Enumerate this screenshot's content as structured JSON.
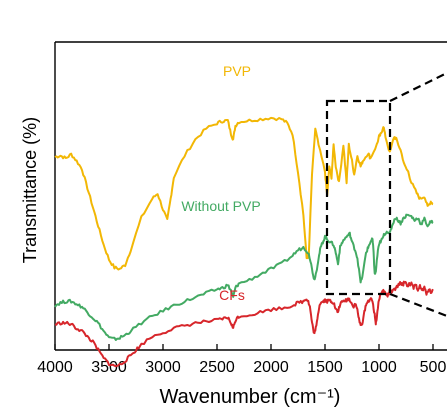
{
  "chart_data": {
    "type": "line",
    "title": "",
    "xlabel": "Wavenumber (cm⁻¹)",
    "ylabel": "Transmittance (%)",
    "xlim": [
      4000,
      500
    ],
    "x_reversed": true,
    "x_ticks": [
      "4000",
      "3500",
      "3000",
      "2500",
      "2000",
      "1500",
      "1000",
      "500"
    ],
    "y_ticks_shown": false,
    "grid": false,
    "legend": "none",
    "series": [
      {
        "name": "PVP",
        "color": "#f2b705",
        "points": [
          [
            4000,
            0.615
          ],
          [
            3950,
            0.62
          ],
          [
            3900,
            0.61
          ],
          [
            3850,
            0.625
          ],
          [
            3800,
            0.6
          ],
          [
            3750,
            0.57
          ],
          [
            3700,
            0.5
          ],
          [
            3650,
            0.43
          ],
          [
            3600,
            0.36
          ],
          [
            3550,
            0.29
          ],
          [
            3500,
            0.235
          ],
          [
            3450,
            0.205
          ],
          [
            3400,
            0.2
          ],
          [
            3350,
            0.215
          ],
          [
            3300,
            0.27
          ],
          [
            3200,
            0.39
          ],
          [
            3100,
            0.46
          ],
          [
            3050,
            0.48
          ],
          [
            3000,
            0.42
          ],
          [
            2960,
            0.38
          ],
          [
            2930,
            0.46
          ],
          [
            2900,
            0.54
          ],
          [
            2800,
            0.62
          ],
          [
            2700,
            0.68
          ],
          [
            2600,
            0.72
          ],
          [
            2500,
            0.74
          ],
          [
            2450,
            0.748
          ],
          [
            2400,
            0.75
          ],
          [
            2370,
            0.7
          ],
          [
            2350,
            0.68
          ],
          [
            2330,
            0.73
          ],
          [
            2300,
            0.745
          ],
          [
            2200,
            0.75
          ],
          [
            2100,
            0.755
          ],
          [
            2000,
            0.76
          ],
          [
            1900,
            0.755
          ],
          [
            1850,
            0.74
          ],
          [
            1800,
            0.7
          ],
          [
            1750,
            0.56
          ],
          [
            1700,
            0.4
          ],
          [
            1670,
            0.24
          ],
          [
            1650,
            0.25
          ],
          [
            1620,
            0.55
          ],
          [
            1590,
            0.72
          ],
          [
            1560,
            0.66
          ],
          [
            1500,
            0.56
          ],
          [
            1480,
            0.47
          ],
          [
            1460,
            0.58
          ],
          [
            1440,
            0.54
          ],
          [
            1420,
            0.66
          ],
          [
            1400,
            0.58
          ],
          [
            1370,
            0.52
          ],
          [
            1330,
            0.66
          ],
          [
            1300,
            0.52
          ],
          [
            1280,
            0.66
          ],
          [
            1250,
            0.6
          ],
          [
            1230,
            0.55
          ],
          [
            1200,
            0.62
          ],
          [
            1170,
            0.58
          ],
          [
            1150,
            0.6
          ],
          [
            1100,
            0.63
          ],
          [
            1080,
            0.61
          ],
          [
            1020,
            0.66
          ],
          [
            1000,
            0.69
          ],
          [
            980,
            0.7
          ],
          [
            960,
            0.73
          ],
          [
            940,
            0.69
          ],
          [
            900,
            0.63
          ],
          [
            860,
            0.69
          ],
          [
            840,
            0.68
          ],
          [
            800,
            0.64
          ],
          [
            760,
            0.58
          ],
          [
            730,
            0.56
          ],
          [
            700,
            0.52
          ],
          [
            650,
            0.48
          ],
          [
            620,
            0.46
          ],
          [
            580,
            0.47
          ],
          [
            550,
            0.43
          ],
          [
            520,
            0.45
          ],
          [
            500,
            0.44
          ]
        ]
      },
      {
        "name": "Without PVP",
        "color": "#43aa63",
        "points": [
          [
            4000,
            0.065
          ],
          [
            3950,
            0.075
          ],
          [
            3900,
            0.08
          ],
          [
            3850,
            0.08
          ],
          [
            3800,
            0.07
          ],
          [
            3750,
            0.06
          ],
          [
            3700,
            0.04
          ],
          [
            3650,
            0.02
          ],
          [
            3600,
            0.0
          ],
          [
            3550,
            -0.03
          ],
          [
            3500,
            -0.055
          ],
          [
            3450,
            -0.06
          ],
          [
            3400,
            -0.055
          ],
          [
            3350,
            -0.045
          ],
          [
            3300,
            -0.03
          ],
          [
            3200,
            0.0
          ],
          [
            3100,
            0.025
          ],
          [
            3000,
            0.045
          ],
          [
            2900,
            0.065
          ],
          [
            2800,
            0.08
          ],
          [
            2700,
            0.095
          ],
          [
            2600,
            0.11
          ],
          [
            2500,
            0.125
          ],
          [
            2450,
            0.13
          ],
          [
            2400,
            0.14
          ],
          [
            2370,
            0.12
          ],
          [
            2350,
            0.095
          ],
          [
            2330,
            0.13
          ],
          [
            2300,
            0.145
          ],
          [
            2200,
            0.16
          ],
          [
            2100,
            0.18
          ],
          [
            2000,
            0.2
          ],
          [
            1900,
            0.22
          ],
          [
            1800,
            0.25
          ],
          [
            1750,
            0.27
          ],
          [
            1700,
            0.28
          ],
          [
            1650,
            0.26
          ],
          [
            1620,
            0.2
          ],
          [
            1600,
            0.16
          ],
          [
            1580,
            0.19
          ],
          [
            1560,
            0.24
          ],
          [
            1540,
            0.28
          ],
          [
            1520,
            0.3
          ],
          [
            1500,
            0.32
          ],
          [
            1480,
            0.31
          ],
          [
            1450,
            0.3
          ],
          [
            1420,
            0.29
          ],
          [
            1400,
            0.26
          ],
          [
            1380,
            0.22
          ],
          [
            1360,
            0.28
          ],
          [
            1340,
            0.3
          ],
          [
            1300,
            0.32
          ],
          [
            1270,
            0.33
          ],
          [
            1250,
            0.3
          ],
          [
            1220,
            0.27
          ],
          [
            1200,
            0.24
          ],
          [
            1170,
            0.15
          ],
          [
            1150,
            0.18
          ],
          [
            1120,
            0.26
          ],
          [
            1100,
            0.28
          ],
          [
            1080,
            0.3
          ],
          [
            1060,
            0.31
          ],
          [
            1050,
            0.26
          ],
          [
            1040,
            0.18
          ],
          [
            1030,
            0.19
          ],
          [
            1010,
            0.27
          ],
          [
            990,
            0.3
          ],
          [
            970,
            0.31
          ],
          [
            950,
            0.33
          ],
          [
            920,
            0.34
          ],
          [
            900,
            0.33
          ],
          [
            880,
            0.36
          ],
          [
            850,
            0.39
          ],
          [
            820,
            0.38
          ],
          [
            800,
            0.37
          ],
          [
            770,
            0.39
          ],
          [
            740,
            0.4
          ],
          [
            700,
            0.395
          ],
          [
            670,
            0.38
          ],
          [
            640,
            0.39
          ],
          [
            610,
            0.365
          ],
          [
            580,
            0.385
          ],
          [
            550,
            0.36
          ],
          [
            520,
            0.375
          ],
          [
            500,
            0.37
          ]
        ]
      },
      {
        "name": "CFs",
        "color": "#d7262b",
        "points": [
          [
            4000,
            -0.005
          ],
          [
            3950,
            0.0
          ],
          [
            3900,
            0.0
          ],
          [
            3850,
            -0.005
          ],
          [
            3800,
            -0.02
          ],
          [
            3750,
            -0.03
          ],
          [
            3700,
            -0.05
          ],
          [
            3650,
            -0.07
          ],
          [
            3600,
            -0.1
          ],
          [
            3550,
            -0.13
          ],
          [
            3500,
            -0.15
          ],
          [
            3450,
            -0.16
          ],
          [
            3400,
            -0.155
          ],
          [
            3350,
            -0.14
          ],
          [
            3300,
            -0.12
          ],
          [
            3250,
            -0.1
          ],
          [
            3200,
            -0.08
          ],
          [
            3100,
            -0.05
          ],
          [
            3000,
            -0.035
          ],
          [
            2900,
            -0.02
          ],
          [
            2800,
            -0.01
          ],
          [
            2700,
            0.0
          ],
          [
            2600,
            0.005
          ],
          [
            2500,
            0.01
          ],
          [
            2450,
            0.015
          ],
          [
            2400,
            0.02
          ],
          [
            2370,
            0.0
          ],
          [
            2350,
            -0.02
          ],
          [
            2330,
            0.01
          ],
          [
            2300,
            0.025
          ],
          [
            2200,
            0.03
          ],
          [
            2100,
            0.04
          ],
          [
            2000,
            0.05
          ],
          [
            1900,
            0.055
          ],
          [
            1800,
            0.065
          ],
          [
            1750,
            0.075
          ],
          [
            1700,
            0.08
          ],
          [
            1680,
            0.09
          ],
          [
            1660,
            0.085
          ],
          [
            1640,
            0.06
          ],
          [
            1620,
            0.0
          ],
          [
            1600,
            -0.04
          ],
          [
            1590,
            -0.03
          ],
          [
            1570,
            0.02
          ],
          [
            1550,
            0.07
          ],
          [
            1520,
            0.08
          ],
          [
            1500,
            0.085
          ],
          [
            1480,
            0.08
          ],
          [
            1460,
            0.085
          ],
          [
            1440,
            0.08
          ],
          [
            1420,
            0.075
          ],
          [
            1400,
            0.05
          ],
          [
            1380,
            0.04
          ],
          [
            1360,
            0.07
          ],
          [
            1330,
            0.08
          ],
          [
            1300,
            0.085
          ],
          [
            1280,
            0.09
          ],
          [
            1260,
            0.08
          ],
          [
            1240,
            0.06
          ],
          [
            1220,
            0.07
          ],
          [
            1200,
            0.05
          ],
          [
            1180,
            0.0
          ],
          [
            1160,
            -0.01
          ],
          [
            1140,
            0.03
          ],
          [
            1120,
            0.07
          ],
          [
            1100,
            0.08
          ],
          [
            1080,
            0.09
          ],
          [
            1060,
            0.08
          ],
          [
            1040,
            0.03
          ],
          [
            1030,
            0.0
          ],
          [
            1020,
            0.02
          ],
          [
            1000,
            0.09
          ],
          [
            980,
            0.11
          ],
          [
            960,
            0.12
          ],
          [
            940,
            0.11
          ],
          [
            920,
            0.1
          ],
          [
            900,
            0.12
          ],
          [
            880,
            0.115
          ],
          [
            850,
            0.125
          ],
          [
            820,
            0.14
          ],
          [
            800,
            0.15
          ],
          [
            780,
            0.14
          ],
          [
            760,
            0.155
          ],
          [
            740,
            0.14
          ],
          [
            700,
            0.145
          ],
          [
            680,
            0.13
          ],
          [
            660,
            0.14
          ],
          [
            640,
            0.125
          ],
          [
            620,
            0.135
          ],
          [
            600,
            0.12
          ],
          [
            580,
            0.13
          ],
          [
            560,
            0.11
          ],
          [
            540,
            0.125
          ],
          [
            520,
            0.115
          ],
          [
            500,
            0.12
          ]
        ]
      }
    ],
    "annotations": {
      "dashed_box_x_range": [
        1500,
        900
      ],
      "zoom_lines": "dashed lines extending to the right edge (inset beyond view)"
    }
  }
}
